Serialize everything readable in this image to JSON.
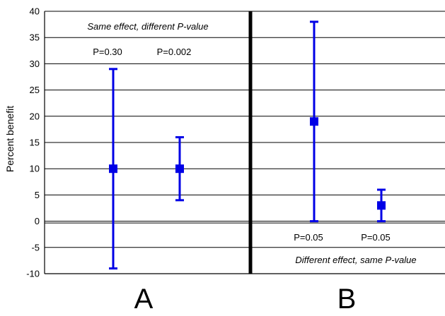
{
  "chart_data": {
    "type": "scatter",
    "ylabel": "Percent benefit",
    "ylim": [
      -10,
      40
    ],
    "yticks": [
      "40",
      "35",
      "30",
      "25",
      "20",
      "15",
      "10",
      "5",
      "0",
      "-5",
      "-10"
    ],
    "grid": true,
    "panels": [
      {
        "label": "A",
        "note": "Same effect, different P-value",
        "points": [
          {
            "estimate": 10,
            "lower": -9,
            "upper": 29,
            "p_label": "P=0.30"
          },
          {
            "estimate": 10,
            "lower": 4,
            "upper": 16,
            "p_label": "P=0.002"
          }
        ]
      },
      {
        "label": "B",
        "note": "Different effect, same P-value",
        "points": [
          {
            "estimate": 19,
            "lower": 0,
            "upper": 38,
            "p_label": "P=0.05"
          },
          {
            "estimate": 3,
            "lower": 0,
            "upper": 6,
            "p_label": "P=0.05"
          }
        ]
      }
    ],
    "colors": {
      "marker": "#0000e6",
      "axis": "#000000",
      "grid": "#000000"
    }
  }
}
